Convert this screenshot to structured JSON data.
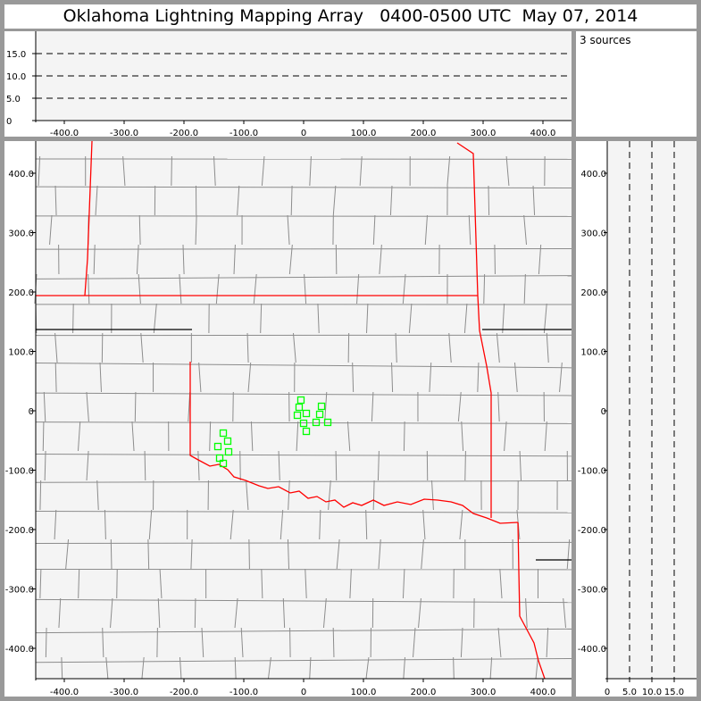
{
  "title": "Oklahoma Lightning Mapping Array   0400-0500 UTC  May 07, 2014",
  "sources_label": "3 sources",
  "colors": {
    "background": "#999999",
    "plot_bg": "#f4f4f4",
    "state_border": "#ff0000",
    "county_border": "#8c8c8c",
    "source_marker": "#00ff00"
  },
  "chart_data": [
    {
      "type": "scatter",
      "panel": "altitude-vs-east-west",
      "xlim": [
        -450,
        450
      ],
      "ylim": [
        0,
        20
      ],
      "x_ticks": [
        "-400.0",
        "-300.0",
        "-200.0",
        "-100.0",
        "0",
        "100.0",
        "200.0",
        "300.0",
        "400.0"
      ],
      "y_ticks": [
        "0",
        "5.0",
        "10.0",
        "15.0"
      ],
      "grid": "dashed horizontal at 5, 10, 15",
      "points": []
    },
    {
      "type": "scatter",
      "panel": "plan-view-map",
      "xlim": [
        -450,
        450
      ],
      "ylim": [
        -450,
        450
      ],
      "x_ticks": [
        "-400.0",
        "-300.0",
        "-200.0",
        "-100.0",
        "0",
        "100.0",
        "200.0",
        "300.0",
        "400.0"
      ],
      "y_ticks": [
        "400.0",
        "300.0",
        "200.0",
        "100.0",
        "0",
        "-100.0",
        "-200.0",
        "-300.0",
        "-400.0"
      ],
      "marker": "hollow square",
      "points": [
        [
          -4.5,
          18.0
        ],
        [
          -7.5,
          6.0
        ],
        [
          4.5,
          -4.5
        ],
        [
          -10.4,
          -7.5
        ],
        [
          29.9,
          7.5
        ],
        [
          26.9,
          -6.0
        ],
        [
          0,
          -21.1
        ],
        [
          20.9,
          -19.5
        ],
        [
          40.3,
          -19.5
        ],
        [
          4.5,
          -34.6
        ],
        [
          -134.3,
          -37.6
        ],
        [
          -126.9,
          -51.1
        ],
        [
          -143.3,
          -60.2
        ],
        [
          -125.4,
          -69.2
        ],
        [
          -140.3,
          -79.7
        ],
        [
          -134.3,
          -88.7
        ]
      ]
    },
    {
      "type": "scatter",
      "panel": "north-south-vs-altitude",
      "xlim": [
        0,
        20
      ],
      "ylim": [
        -450,
        450
      ],
      "x_ticks": [
        "0",
        "5.0",
        "10.0",
        "15.0"
      ],
      "y_ticks": [
        "400.0",
        "300.0",
        "200.0",
        "100.0",
        "0",
        "-100.0",
        "-200.0",
        "-300.0",
        "-400.0"
      ],
      "grid": "dashed vertical at 5, 10, 15",
      "points": []
    }
  ]
}
